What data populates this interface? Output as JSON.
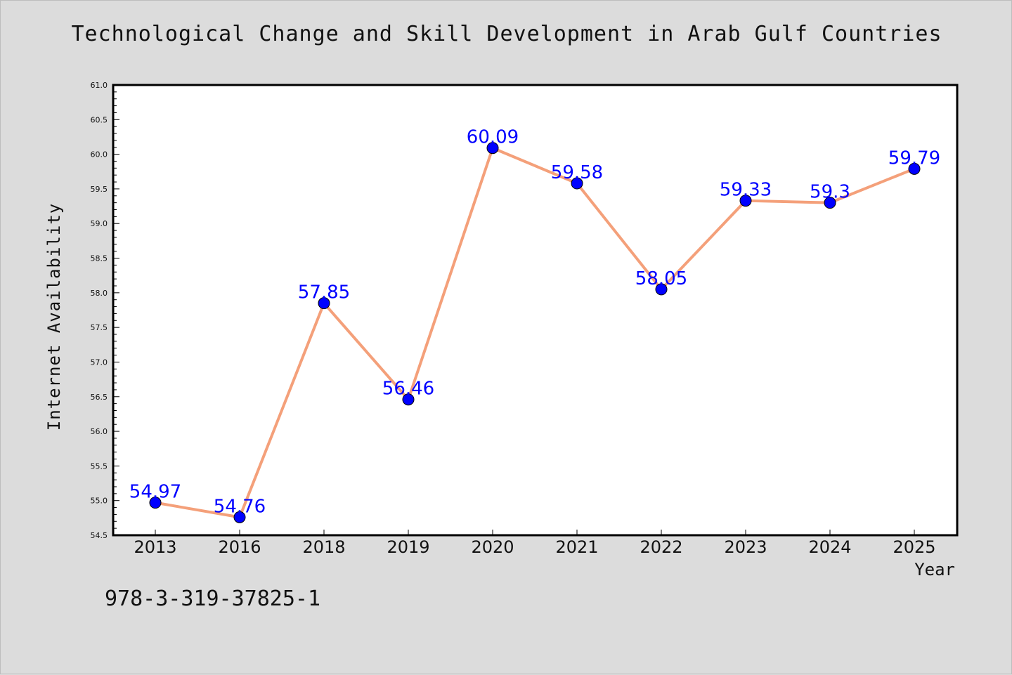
{
  "chart_data": {
    "type": "line",
    "title": "Technological Change and Skill Development in Arab Gulf Countries",
    "xlabel": "Year",
    "ylabel": "Internet Availability",
    "categories": [
      "2013",
      "2016",
      "2018",
      "2019",
      "2020",
      "2021",
      "2022",
      "2023",
      "2024",
      "2025"
    ],
    "values": [
      54.97,
      54.76,
      57.85,
      56.46,
      60.09,
      59.58,
      58.05,
      59.33,
      59.3,
      59.79
    ],
    "data_labels": [
      "54.97",
      "54.76",
      "57.85",
      "56.46",
      "60.09",
      "59.58",
      "58.05",
      "59.33",
      "59.3",
      "59.79"
    ],
    "ylim": [
      54.5,
      61.0
    ],
    "yticks": [
      "54.5",
      "55.0",
      "55.5",
      "56.0",
      "56.5",
      "57.0",
      "57.5",
      "58.0",
      "58.5",
      "59.0",
      "59.5",
      "60.0",
      "60.5",
      "61.0"
    ],
    "grid": false,
    "legend": "none",
    "colors": {
      "line": "#f4a07a",
      "marker": "#0000ff",
      "label": "#0000ff",
      "background": "#dcdcdc",
      "plot_background": "#ffffff"
    }
  },
  "footer": {
    "code": "978-3-319-37825-1"
  }
}
